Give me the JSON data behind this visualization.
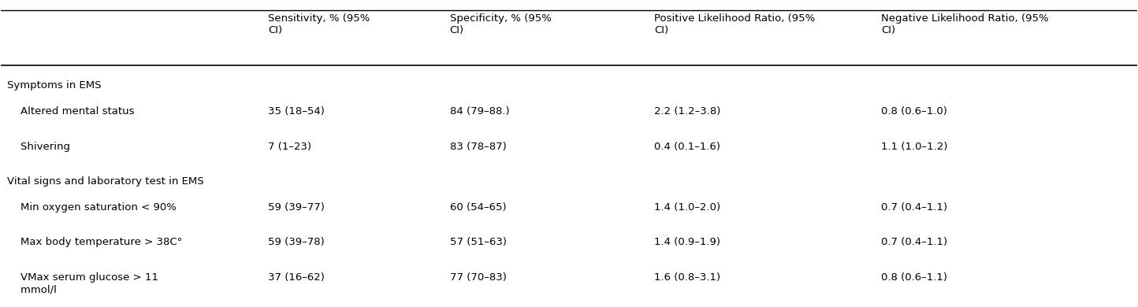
{
  "col_headers": [
    "Sensitivity, % (95%\nCI)",
    "Specificity, % (95%\nCI)",
    "Positive Likelihood Ratio, (95%\nCI)",
    "Negative Likelihood Ratio, (95%\nCI)"
  ],
  "section_headers": [
    "Symptoms in EMS",
    "Vital signs and laboratory test in EMS"
  ],
  "rows": [
    {
      "label": "    Altered mental status",
      "values": [
        "35 (18–54)",
        "84 (79–88.)",
        "2.2 (1.2–3.8)",
        "0.8 (0.6–1.0)"
      ],
      "section": 0
    },
    {
      "label": "    Shivering",
      "values": [
        "7 (1–23)",
        "83 (78–87)",
        "0.4 (0.1–1.6)",
        "1.1 (1.0–1.2)"
      ],
      "section": 0
    },
    {
      "label": "    Min oxygen saturation < 90%",
      "values": [
        "59 (39–77)",
        "60 (54–65)",
        "1.4 (1.0–2.0)",
        "0.7 (0.4–1.1)"
      ],
      "section": 1
    },
    {
      "label": "    Max body temperature > 38C°",
      "values": [
        "59 (39–78)",
        "57 (51–63)",
        "1.4 (0.9–1.9)",
        "0.7 (0.4–1.1)"
      ],
      "section": 1
    },
    {
      "label": "    VMax serum glucose > 11\n    mmol/l",
      "values": [
        "37 (16–62)",
        "77 (70–83)",
        "1.6 (0.8–3.1)",
        "0.8 (0.6–1.1)"
      ],
      "section": 1
    }
  ],
  "background_color": "#ffffff",
  "header_line_color": "#000000",
  "text_color": "#000000",
  "font_size": 9.5,
  "header_font_size": 9.5
}
